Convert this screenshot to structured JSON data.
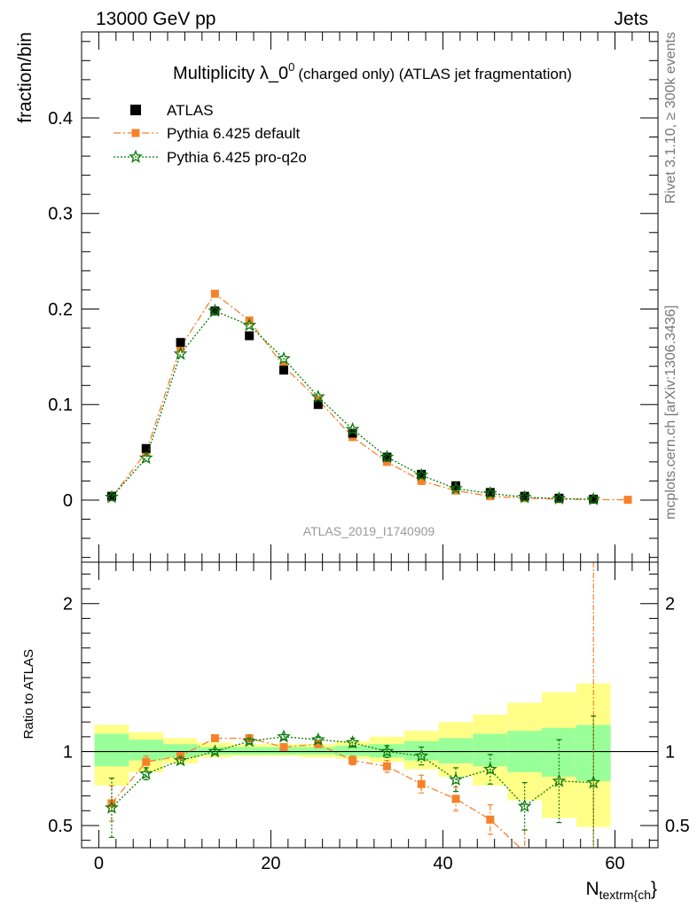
{
  "header": {
    "left": "13000 GeV pp",
    "right": "Jets"
  },
  "side": {
    "top": "Rivet 3.1.10, ≥ 300k events",
    "bottom": "mcplots.cern.ch [arXiv:1306.3436]"
  },
  "colors": {
    "atlas": "#000000",
    "py_default": "#f5822b",
    "py_proq2o": "#0b7a0b",
    "band_inner": "#99ff99",
    "band_outer": "#ffff88"
  },
  "chart_data": [
    {
      "type": "scatter",
      "title_main": "Multiplicity λ_0",
      "title_sup": "0",
      "title_rest": "(charged only) (ATLAS jet fragmentation)",
      "ylabel": "fraction/bin",
      "watermark": "ATLAS_2019_I1740909",
      "xlim": [
        -2,
        65
      ],
      "ylim": [
        -0.065,
        0.49
      ],
      "yticks": [
        0,
        0.1,
        0.2,
        0.3,
        0.4
      ],
      "ytick_labels": [
        "0",
        "0.1",
        "0.2",
        "0.3",
        "0.4"
      ],
      "legend": [
        "ATLAS",
        "Pythia 6.425 default",
        "Pythia 6.425 pro-q2o"
      ],
      "legend_position": "top-left",
      "series": [
        {
          "name": "ATLAS",
          "x": [
            1.5,
            5.5,
            9.5,
            13.5,
            17.5,
            21.5,
            25.5,
            29.5,
            33.5,
            37.5,
            41.5,
            45.5,
            49.5,
            53.5,
            57.5
          ],
          "y": [
            0.004,
            0.054,
            0.165,
            0.198,
            0.172,
            0.136,
            0.1,
            0.07,
            0.045,
            0.027,
            0.015,
            0.008,
            0.004,
            0.002,
            0.001
          ]
        },
        {
          "name": "Pythia 6.425 default",
          "x": [
            1.5,
            5.5,
            9.5,
            13.5,
            17.5,
            21.5,
            25.5,
            29.5,
            33.5,
            37.5,
            41.5,
            45.5,
            49.5,
            53.5,
            57.5,
            61.5
          ],
          "y": [
            0.003,
            0.05,
            0.16,
            0.216,
            0.188,
            0.14,
            0.105,
            0.066,
            0.04,
            0.02,
            0.01,
            0.004,
            0.002,
            0.001,
            0.0005,
            0.0003
          ]
        },
        {
          "name": "Pythia 6.425 pro-q2o",
          "x": [
            1.5,
            5.5,
            9.5,
            13.5,
            17.5,
            21.5,
            25.5,
            29.5,
            33.5,
            37.5,
            41.5,
            45.5,
            49.5,
            53.5,
            57.5
          ],
          "y": [
            0.003,
            0.044,
            0.153,
            0.198,
            0.183,
            0.148,
            0.108,
            0.074,
            0.045,
            0.026,
            0.012,
            0.007,
            0.003,
            0.0016,
            0.0008
          ]
        }
      ]
    },
    {
      "type": "scatter",
      "ylabel": "Ratio to ATLAS",
      "xlabel_main": "N",
      "xlabel_sub": "textrm{ch",
      "xlabel_tail": "}",
      "xlim": [
        -2,
        65
      ],
      "ylim": [
        0.35,
        2.28
      ],
      "yticks": [
        0.5,
        1,
        2
      ],
      "ytick_labels": [
        "0.5",
        "1",
        "2"
      ],
      "xticks": [
        0,
        20,
        40,
        60
      ],
      "xtick_labels": [
        "0",
        "20",
        "40",
        "60"
      ],
      "bands": {
        "edges": [
          -0.5,
          3.5,
          7.5,
          11.5,
          15.5,
          19.5,
          23.5,
          27.5,
          31.5,
          35.5,
          39.5,
          43.5,
          47.5,
          51.5,
          55.5,
          59.5
        ],
        "inner_lo": [
          0.9,
          0.94,
          0.96,
          0.98,
          0.98,
          0.98,
          0.98,
          0.97,
          0.96,
          0.94,
          0.92,
          0.9,
          0.86,
          0.83,
          0.8
        ],
        "inner_hi": [
          1.12,
          1.08,
          1.05,
          1.03,
          1.03,
          1.03,
          1.03,
          1.04,
          1.05,
          1.07,
          1.09,
          1.12,
          1.14,
          1.16,
          1.18
        ],
        "outer_lo": [
          0.77,
          0.86,
          0.92,
          0.96,
          0.97,
          0.97,
          0.96,
          0.95,
          0.93,
          0.88,
          0.83,
          0.77,
          0.67,
          0.55,
          0.49
        ],
        "outer_hi": [
          1.18,
          1.13,
          1.09,
          1.06,
          1.05,
          1.05,
          1.05,
          1.07,
          1.1,
          1.14,
          1.2,
          1.25,
          1.33,
          1.4,
          1.46
        ]
      },
      "series": [
        {
          "name": "Pythia 6.425 default",
          "x": [
            1.5,
            5.5,
            9.5,
            13.5,
            17.5,
            21.5,
            25.5,
            29.5,
            33.5,
            37.5,
            41.5,
            45.5,
            49.5
          ],
          "y": [
            0.65,
            0.93,
            0.97,
            1.09,
            1.09,
            1.03,
            1.05,
            0.94,
            0.9,
            0.78,
            0.68,
            0.54,
            0.32
          ],
          "err": [
            0.12,
            0.04,
            0.02,
            0.015,
            0.015,
            0.015,
            0.02,
            0.03,
            0.04,
            0.06,
            0.08,
            0.1,
            0.15
          ]
        },
        {
          "name": "Pythia 6.425 pro-q2o",
          "x": [
            1.5,
            5.5,
            9.5,
            13.5,
            17.5,
            21.5,
            25.5,
            29.5,
            33.5,
            37.5,
            41.5,
            45.5,
            49.5,
            53.5,
            57.5
          ],
          "y": [
            0.62,
            0.85,
            0.94,
            1.0,
            1.07,
            1.1,
            1.08,
            1.06,
            1.0,
            0.97,
            0.81,
            0.88,
            0.63,
            0.8,
            0.79
          ],
          "err": [
            0.2,
            0.04,
            0.02,
            0.015,
            0.015,
            0.015,
            0.02,
            0.03,
            0.04,
            0.06,
            0.08,
            0.1,
            0.16,
            0.28,
            0.45
          ]
        }
      ]
    }
  ]
}
